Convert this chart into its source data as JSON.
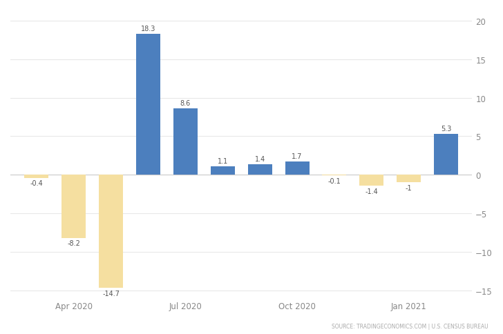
{
  "values": [
    -0.4,
    -8.2,
    -14.7,
    18.3,
    8.6,
    1.1,
    1.4,
    1.7,
    -0.1,
    -1.4,
    -1.0,
    5.3
  ],
  "bar_colors": [
    "#f5dfa0",
    "#f5dfa0",
    "#f5dfa0",
    "#4c7fbe",
    "#4c7fbe",
    "#4c7fbe",
    "#4c7fbe",
    "#4c7fbe",
    "#f5dfa0",
    "#f5dfa0",
    "#f5dfa0",
    "#4c7fbe"
  ],
  "ylim": [
    -16,
    21
  ],
  "yticks": [
    -15,
    -10,
    -5,
    0,
    5,
    10,
    15,
    20
  ],
  "xtick_positions": [
    1,
    4,
    7.5,
    10.5
  ],
  "xtick_labels": [
    "Apr 2020",
    "Jul 2020",
    "Oct 2020",
    "Jan 2021"
  ],
  "source_text": "SOURCE: TRADINGECONOMICS.COM | U.S. CENSUS BUREAU",
  "background_color": "#ffffff",
  "grid_color": "#e8e8e8",
  "bar_width": 0.65
}
